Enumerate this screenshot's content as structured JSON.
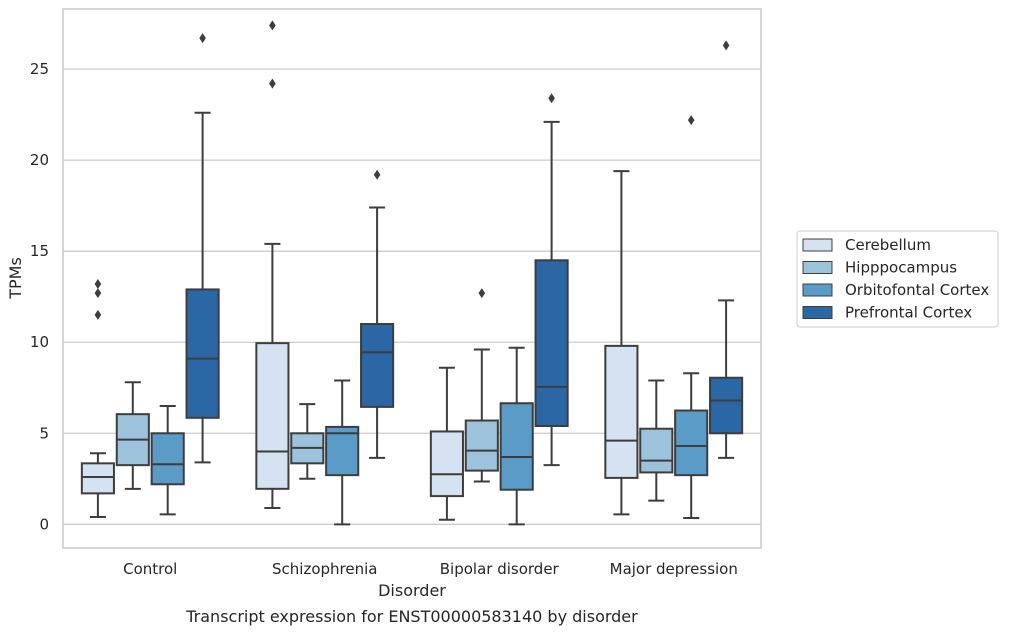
{
  "chart_data": {
    "type": "box",
    "title": "",
    "caption": "Transcript expression for ENST00000583140 by disorder",
    "xlabel": "Disorder",
    "ylabel": "TPMs",
    "ylim": [
      -1.3,
      28.3
    ],
    "yticks": [
      0,
      5,
      10,
      15,
      20,
      25
    ],
    "grid": "horizontal",
    "legend_position": "right",
    "categories": [
      "Control",
      "Schizophrenia",
      "Bipolar disorder",
      "Major depression"
    ],
    "series": [
      {
        "name": "Cerebellum",
        "color": "#d4e2f1",
        "boxes": [
          {
            "whislo": 0.4,
            "q1": 1.7,
            "med": 2.6,
            "q3": 3.35,
            "whishi": 3.9,
            "fliers": [
              11.5,
              12.7,
              13.2
            ]
          },
          {
            "whislo": 0.9,
            "q1": 1.95,
            "med": 4.0,
            "q3": 9.95,
            "whishi": 15.4,
            "fliers": [
              24.2,
              27.4
            ]
          },
          {
            "whislo": 0.25,
            "q1": 1.55,
            "med": 2.75,
            "q3": 5.1,
            "whishi": 8.6,
            "fliers": []
          },
          {
            "whislo": 0.55,
            "q1": 2.55,
            "med": 4.6,
            "q3": 9.8,
            "whishi": 19.4,
            "fliers": []
          }
        ]
      },
      {
        "name": "Hipppocampus",
        "color": "#9cc2dc",
        "boxes": [
          {
            "whislo": 1.95,
            "q1": 3.25,
            "med": 4.65,
            "q3": 6.05,
            "whishi": 7.8,
            "fliers": []
          },
          {
            "whislo": 2.5,
            "q1": 3.35,
            "med": 4.2,
            "q3": 5.0,
            "whishi": 6.6,
            "fliers": []
          },
          {
            "whislo": 2.35,
            "q1": 2.95,
            "med": 4.05,
            "q3": 5.7,
            "whishi": 9.6,
            "fliers": [
              12.7
            ]
          },
          {
            "whislo": 1.3,
            "q1": 2.85,
            "med": 3.5,
            "q3": 5.25,
            "whishi": 7.9,
            "fliers": []
          }
        ]
      },
      {
        "name": "Orbitofontal Cortex",
        "color": "#5b9bc7",
        "boxes": [
          {
            "whislo": 0.55,
            "q1": 2.2,
            "med": 3.3,
            "q3": 5.0,
            "whishi": 6.5,
            "fliers": []
          },
          {
            "whislo": 0.0,
            "q1": 2.7,
            "med": 5.0,
            "q3": 5.35,
            "whishi": 7.9,
            "fliers": []
          },
          {
            "whislo": 0.0,
            "q1": 1.9,
            "med": 3.7,
            "q3": 6.65,
            "whishi": 9.7,
            "fliers": []
          },
          {
            "whislo": 0.35,
            "q1": 2.7,
            "med": 4.3,
            "q3": 6.25,
            "whishi": 8.3,
            "fliers": [
              22.2
            ]
          }
        ]
      },
      {
        "name": "Prefrontal Cortex",
        "color": "#2a67a4",
        "boxes": [
          {
            "whislo": 3.4,
            "q1": 5.85,
            "med": 9.1,
            "q3": 12.9,
            "whishi": 22.6,
            "fliers": [
              26.7
            ]
          },
          {
            "whislo": 3.65,
            "q1": 6.45,
            "med": 9.45,
            "q3": 11.0,
            "whishi": 17.4,
            "fliers": [
              19.2
            ]
          },
          {
            "whislo": 3.25,
            "q1": 5.4,
            "med": 7.55,
            "q3": 14.5,
            "whishi": 22.1,
            "fliers": [
              23.4
            ]
          },
          {
            "whislo": 3.65,
            "q1": 5.0,
            "med": 6.8,
            "q3": 8.05,
            "whishi": 12.3,
            "fliers": [
              26.3
            ]
          }
        ]
      }
    ]
  }
}
